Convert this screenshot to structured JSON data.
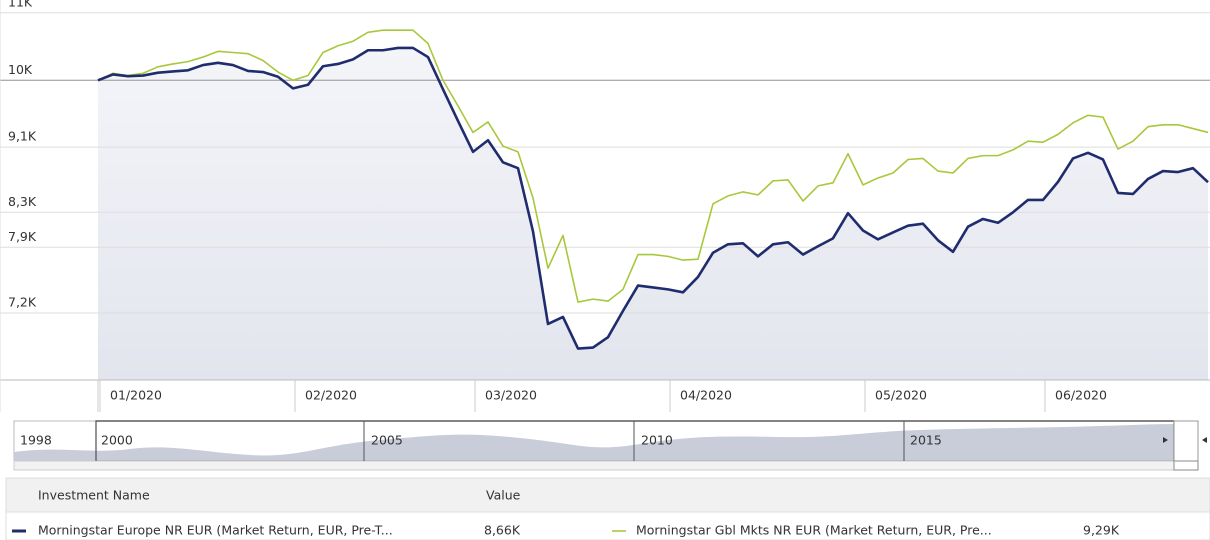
{
  "chart_data": {
    "type": "line",
    "categories": [
      "01/2020",
      null,
      null,
      null,
      null,
      null,
      null,
      null,
      null,
      null,
      null,
      null,
      null,
      "02/2020",
      null,
      null,
      null,
      null,
      null,
      null,
      null,
      null,
      null,
      null,
      null,
      "03/2020",
      null,
      null,
      null,
      null,
      null,
      null,
      null,
      null,
      null,
      null,
      null,
      null,
      "04/2020",
      null,
      null,
      null,
      null,
      null,
      null,
      null,
      null,
      null,
      null,
      null,
      null,
      "05/2020",
      null,
      null,
      null,
      null,
      null,
      null,
      null,
      null,
      null,
      null,
      null,
      "06/2020",
      null,
      null,
      null,
      null,
      null,
      null,
      null,
      null,
      null,
      null,
      null
    ],
    "series": [
      {
        "name": "Morningstar Europe NR EUR (Market Return, EUR, Pre-T...",
        "color": "#1f2d6e",
        "legend_value": "8,66K",
        "values": [
          10000,
          10083,
          10058,
          10067,
          10108,
          10125,
          10142,
          10217,
          10250,
          10217,
          10133,
          10117,
          10050,
          9886,
          9937,
          10200,
          10233,
          10300,
          10433,
          10433,
          10467,
          10467,
          10333,
          9873,
          9442,
          9039,
          9188,
          8906,
          8833,
          8078,
          7089,
          7160,
          6847,
          6857,
          6958,
          7221,
          7484,
          7464,
          7444,
          7413,
          7576,
          7839,
          7933,
          7944,
          7799,
          7933,
          7956,
          7819,
          7911,
          8000,
          8289,
          8089,
          7989,
          8067,
          8144,
          8167,
          7978,
          7849,
          8133,
          8222,
          8178,
          8300,
          8446,
          8446,
          8664,
          8955,
          9027,
          8942,
          8530,
          8518,
          8700,
          8797,
          8785,
          8833,
          8660
        ]
      },
      {
        "name": "Morningstar Gbl Mkts NR EUR (Market Return, EUR, Pre...",
        "color": "#a8c83c",
        "legend_value": "9,29K",
        "values": [
          10000,
          10100,
          10067,
          10100,
          10192,
          10233,
          10267,
          10333,
          10417,
          10400,
          10383,
          10283,
          10117,
          10000,
          10067,
          10400,
          10500,
          10567,
          10700,
          10733,
          10733,
          10733,
          10533,
          10000,
          9645,
          9290,
          9429,
          9112,
          9039,
          8470,
          7670,
          8033,
          7312,
          7342,
          7322,
          7444,
          7819,
          7819,
          7799,
          7758,
          7768,
          8400,
          8494,
          8542,
          8506,
          8676,
          8688,
          8433,
          8615,
          8652,
          9015,
          8627,
          8712,
          8773,
          8942,
          8955,
          8797,
          8773,
          8955,
          8991,
          8991,
          9064,
          9176,
          9163,
          9265,
          9417,
          9518,
          9493,
          9075,
          9176,
          9366,
          9391,
          9391,
          9341,
          9290
        ]
      }
    ],
    "ylim": [
      6550,
      11200
    ],
    "log_scale": true,
    "yticks": [
      {
        "value": 11000,
        "label": "11K"
      },
      {
        "value": 10000,
        "label": "10K"
      },
      {
        "value": 9100,
        "label": "9,1K"
      },
      {
        "value": 8300,
        "label": "8,3K"
      },
      {
        "value": 7900,
        "label": "7,9K"
      },
      {
        "value": 7200,
        "label": "7,2K"
      }
    ],
    "grid": true,
    "reference_line": 10000,
    "legend_header": [
      "Investment Name",
      "Value"
    ],
    "navigator": {
      "labels": [
        "1998",
        "2000",
        "2005",
        "2010",
        "2015"
      ]
    }
  }
}
